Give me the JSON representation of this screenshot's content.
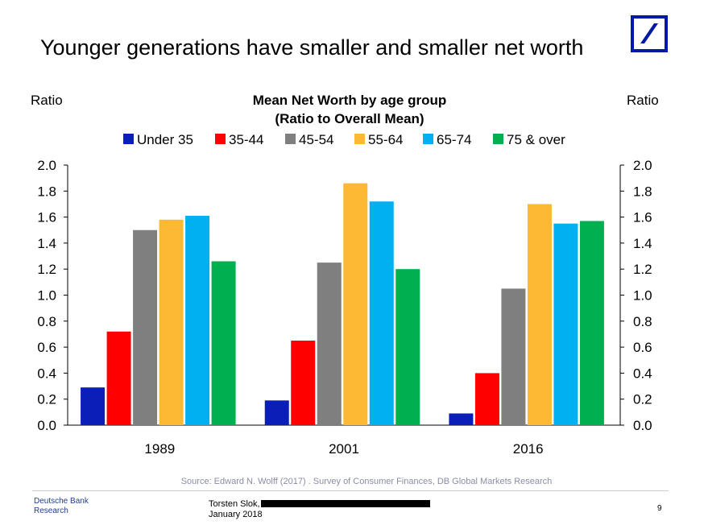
{
  "slide": {
    "title": "Younger generations have smaller and smaller net worth",
    "source": "Source: Edward N. Wolff (2017) . Survey of Consumer Finances, DB Global Markets Research",
    "brand_line1": "Deutsche Bank",
    "brand_line2": "Research",
    "author": "Torsten Slok,",
    "date": "January 2018",
    "page_number": "9"
  },
  "colors": {
    "logo": "#0018a8",
    "source_text": "#8a8ea3",
    "brand_text": "#1f3c8c"
  },
  "chart_data": {
    "type": "bar",
    "title_line1": "Mean Net Worth by age group",
    "title_line2": "(Ratio to Overall Mean)",
    "ylabel_left": "Ratio",
    "ylabel_right": "Ratio",
    "categories": [
      "1989",
      "2001",
      "2016"
    ],
    "ylim": [
      0,
      2.0
    ],
    "yticks": [
      "0.0",
      "0.2",
      "0.4",
      "0.6",
      "0.8",
      "1.0",
      "1.2",
      "1.4",
      "1.6",
      "1.8",
      "2.0"
    ],
    "legend_position": "top",
    "grid": false,
    "series": [
      {
        "name": "Under 35",
        "color": "#0a1fb8",
        "values": [
          0.29,
          0.19,
          0.09
        ]
      },
      {
        "name": "35-44",
        "color": "#ff0000",
        "values": [
          0.72,
          0.65,
          0.4
        ]
      },
      {
        "name": "45-54",
        "color": "#7f7f7f",
        "values": [
          1.5,
          1.25,
          1.05
        ]
      },
      {
        "name": "55-64",
        "color": "#fdb934",
        "values": [
          1.58,
          1.86,
          1.7
        ]
      },
      {
        "name": "65-74",
        "color": "#00b0f0",
        "values": [
          1.61,
          1.72,
          1.55
        ]
      },
      {
        "name": "75 & over",
        "color": "#00b050",
        "values": [
          1.26,
          1.2,
          1.57
        ]
      }
    ]
  }
}
